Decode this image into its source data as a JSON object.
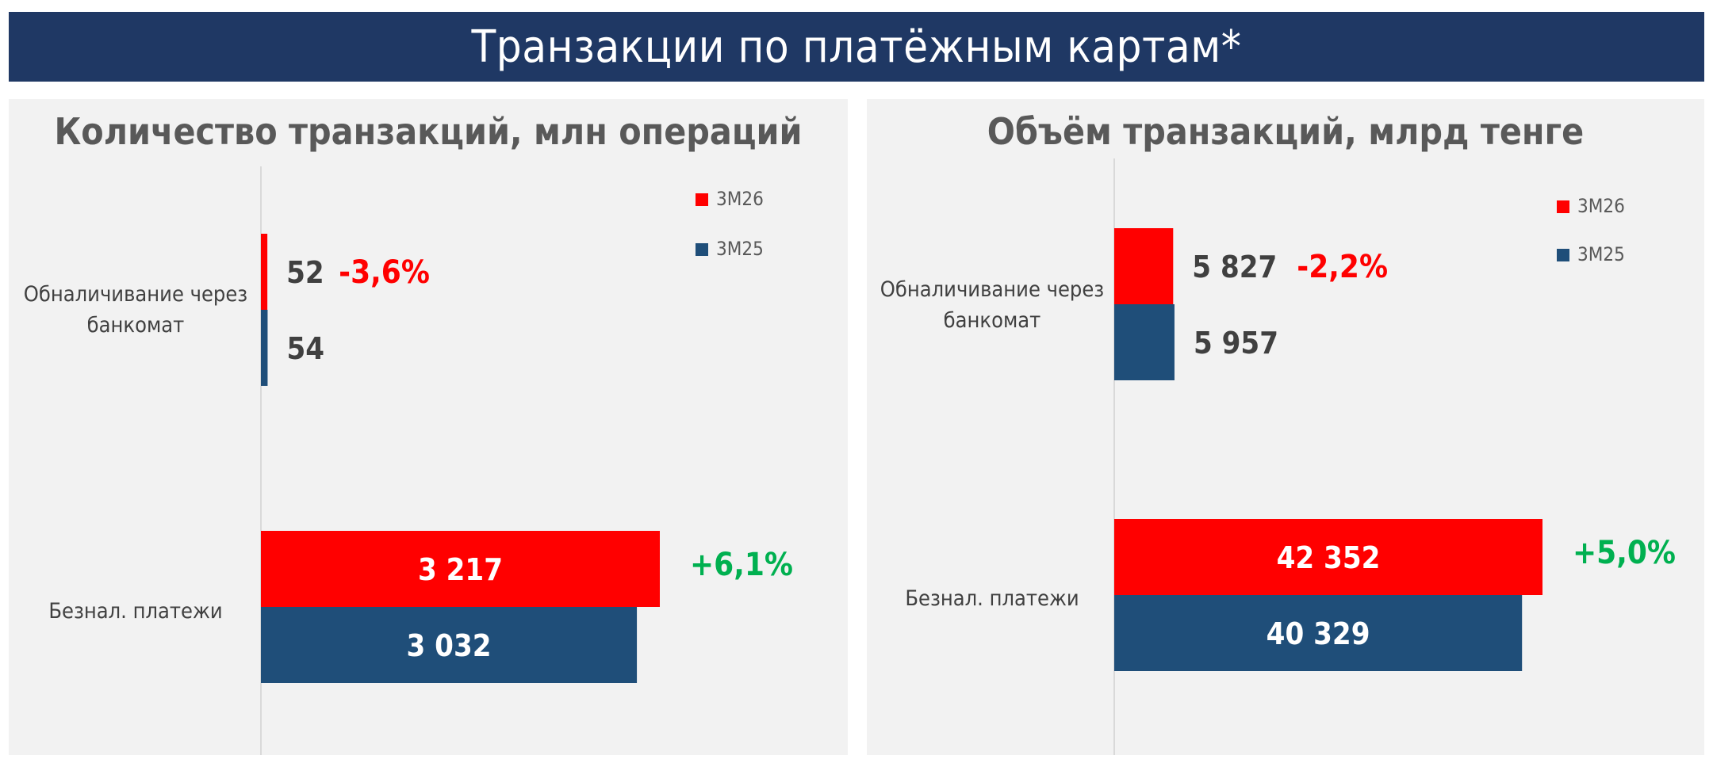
{
  "banner": {
    "title": "Транзакции по платёжным картам*"
  },
  "colors": {
    "banner_bg": "#1f3864",
    "series_3m26": "#ff0000",
    "series_3m25": "#1f4e79",
    "negative_change": "#ff0000",
    "positive_change": "#00b050",
    "value_label_dark": "#404040",
    "category_label": "#404040",
    "panel_bg": "#f2f2f2"
  },
  "chart_data": [
    {
      "type": "bar",
      "orientation": "horizontal",
      "title": "Количество транзакций, млн операций",
      "categories": [
        "Обналичивание через банкомат",
        "Безнал. платежи"
      ],
      "category_lines": [
        [
          "Обналичивание через",
          "банкомат"
        ],
        [
          "Безнал. платежи"
        ]
      ],
      "series": [
        {
          "name": "3М26",
          "values": [
            52,
            3217
          ],
          "labels": [
            "52",
            "3 217"
          ]
        },
        {
          "name": "3М25",
          "values": [
            54,
            3032
          ],
          "labels": [
            "54",
            "3 032"
          ]
        }
      ],
      "changes": [
        "-3,6%",
        "+6,1%"
      ],
      "legend_position": "top-right",
      "grid": false,
      "xlim": [
        0,
        4120
      ]
    },
    {
      "type": "bar",
      "orientation": "horizontal",
      "title": "Объём транзакций, млрд тенге",
      "categories": [
        "Обналичивание через банкомат",
        "Безнал. платежи"
      ],
      "category_lines": [
        [
          "Обналичивание через",
          "банкомат"
        ],
        [
          "Безнал. платежи"
        ]
      ],
      "series": [
        {
          "name": "3М26",
          "values": [
            5827,
            42352
          ],
          "labels": [
            "5 827",
            "42 352"
          ]
        },
        {
          "name": "3М25",
          "values": [
            5957,
            40329
          ],
          "labels": [
            "5 957",
            "40 329"
          ]
        }
      ],
      "changes": [
        "-2,2%",
        "+5,0%"
      ],
      "legend_position": "top-right",
      "grid": false,
      "xlim": [
        0,
        68000
      ]
    }
  ]
}
